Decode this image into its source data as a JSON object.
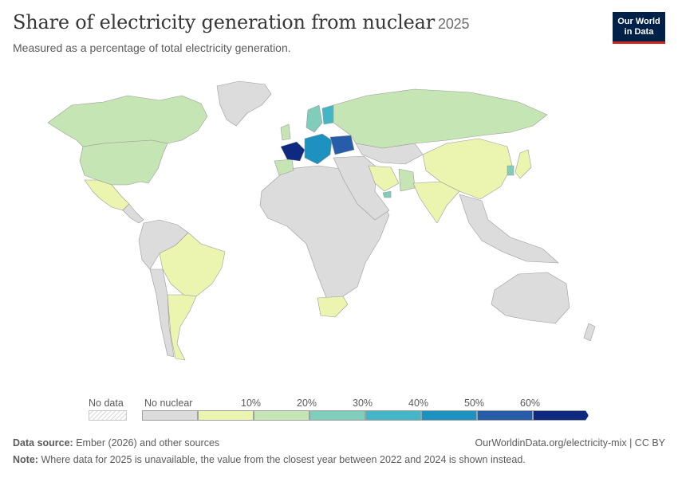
{
  "header": {
    "title": "Share of electricity generation from nuclear",
    "year": "2025",
    "subtitle": "Measured as a percentage of total electricity generation."
  },
  "logo": {
    "line1": "Our World",
    "line2": "in Data"
  },
  "legend": {
    "no_data_label": "No data",
    "no_nuclear_label": "No nuclear",
    "bins": [
      {
        "color": "#ebf5b0",
        "tick": "10%"
      },
      {
        "color": "#c5e6b4",
        "tick": "20%"
      },
      {
        "color": "#80cdbb",
        "tick": "30%"
      },
      {
        "color": "#43b5c6",
        "tick": "40%"
      },
      {
        "color": "#1d91c0",
        "tick": "50%"
      },
      {
        "color": "#275da8",
        "tick": "60%"
      },
      {
        "color": "#0e2a80",
        "tick": ""
      }
    ],
    "no_nuclear_color": "#dcdcdc"
  },
  "footer": {
    "source_label": "Data source:",
    "source_text": "Ember (2026) and other sources",
    "url_text": "OurWorldinData.org/electricity-mix | CC BY",
    "note_label": "Note:",
    "note_text": "Where data for 2025 is unavailable, the value from the closest year between 2022 and 2024 is shown instead."
  },
  "map": {
    "regions": [
      {
        "name": "canada",
        "color": "#c5e6b4"
      },
      {
        "name": "usa",
        "color": "#c5e6b4"
      },
      {
        "name": "mexico",
        "color": "#ebf5b0"
      },
      {
        "name": "greenland",
        "color": "#dcdcdc"
      },
      {
        "name": "central-america",
        "color": "#dcdcdc"
      },
      {
        "name": "south-america-north",
        "color": "#dcdcdc"
      },
      {
        "name": "brazil",
        "color": "#ebf5b0"
      },
      {
        "name": "argentina",
        "color": "#ebf5b0"
      },
      {
        "name": "chile",
        "color": "#dcdcdc"
      },
      {
        "name": "africa",
        "color": "#dcdcdc"
      },
      {
        "name": "south-africa",
        "color": "#ebf5b0"
      },
      {
        "name": "russia",
        "color": "#c5e6b4"
      },
      {
        "name": "kazakhstan",
        "color": "#dcdcdc"
      },
      {
        "name": "china",
        "color": "#ebf5b0"
      },
      {
        "name": "india",
        "color": "#ebf5b0"
      },
      {
        "name": "middle-east",
        "color": "#dcdcdc"
      },
      {
        "name": "iran",
        "color": "#ebf5b0"
      },
      {
        "name": "pakistan",
        "color": "#c5e6b4"
      },
      {
        "name": "southeast-asia",
        "color": "#dcdcdc"
      },
      {
        "name": "australia",
        "color": "#dcdcdc"
      },
      {
        "name": "japan",
        "color": "#ebf5b0"
      },
      {
        "name": "south-korea",
        "color": "#80cdbb"
      },
      {
        "name": "france",
        "color": "#0e2a80"
      },
      {
        "name": "spain",
        "color": "#c5e6b4"
      },
      {
        "name": "uk",
        "color": "#c5e6b4"
      },
      {
        "name": "sweden",
        "color": "#80cdbb"
      },
      {
        "name": "finland",
        "color": "#43b5c6"
      },
      {
        "name": "ukraine",
        "color": "#275da8"
      },
      {
        "name": "central-europe",
        "color": "#1d91c0"
      },
      {
        "name": "uae",
        "color": "#80cdbb"
      }
    ]
  }
}
